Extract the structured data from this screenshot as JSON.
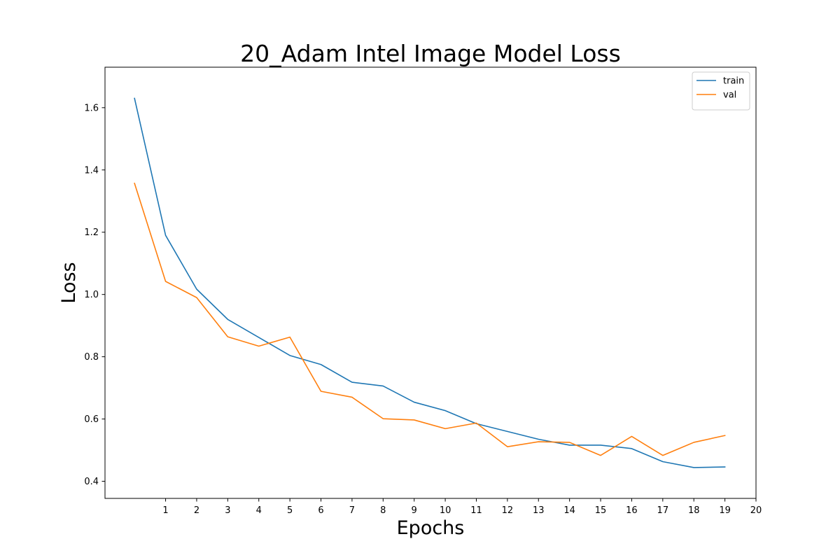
{
  "chart_data": {
    "type": "line",
    "title": "20_Adam Intel Image Model Loss",
    "xlabel": "Epochs",
    "ylabel": "Loss",
    "x": [
      0,
      1,
      2,
      3,
      4,
      5,
      6,
      7,
      8,
      9,
      10,
      11,
      12,
      13,
      14,
      15,
      16,
      17,
      18,
      19
    ],
    "xticks": [
      1,
      2,
      3,
      4,
      5,
      6,
      7,
      8,
      9,
      10,
      11,
      12,
      13,
      14,
      15,
      16,
      17,
      18,
      19,
      20
    ],
    "yticks": [
      0.4,
      0.6,
      0.8,
      1.0,
      1.2,
      1.4,
      1.6
    ],
    "xlim": [
      -0.95,
      20
    ],
    "ylim": [
      0.345,
      1.73
    ],
    "grid": false,
    "legend_position": "top-right",
    "series": [
      {
        "name": "train",
        "color": "#1f77b4",
        "values": [
          1.63,
          1.19,
          1.017,
          0.92,
          0.862,
          0.804,
          0.775,
          0.718,
          0.706,
          0.654,
          0.627,
          0.585,
          0.56,
          0.535,
          0.516,
          0.516,
          0.505,
          0.463,
          0.444,
          0.446
        ]
      },
      {
        "name": "val",
        "color": "#ff7f0e",
        "values": [
          1.357,
          1.042,
          0.99,
          0.864,
          0.834,
          0.863,
          0.689,
          0.67,
          0.601,
          0.597,
          0.569,
          0.587,
          0.511,
          0.527,
          0.525,
          0.483,
          0.544,
          0.483,
          0.525,
          0.547
        ]
      }
    ]
  }
}
